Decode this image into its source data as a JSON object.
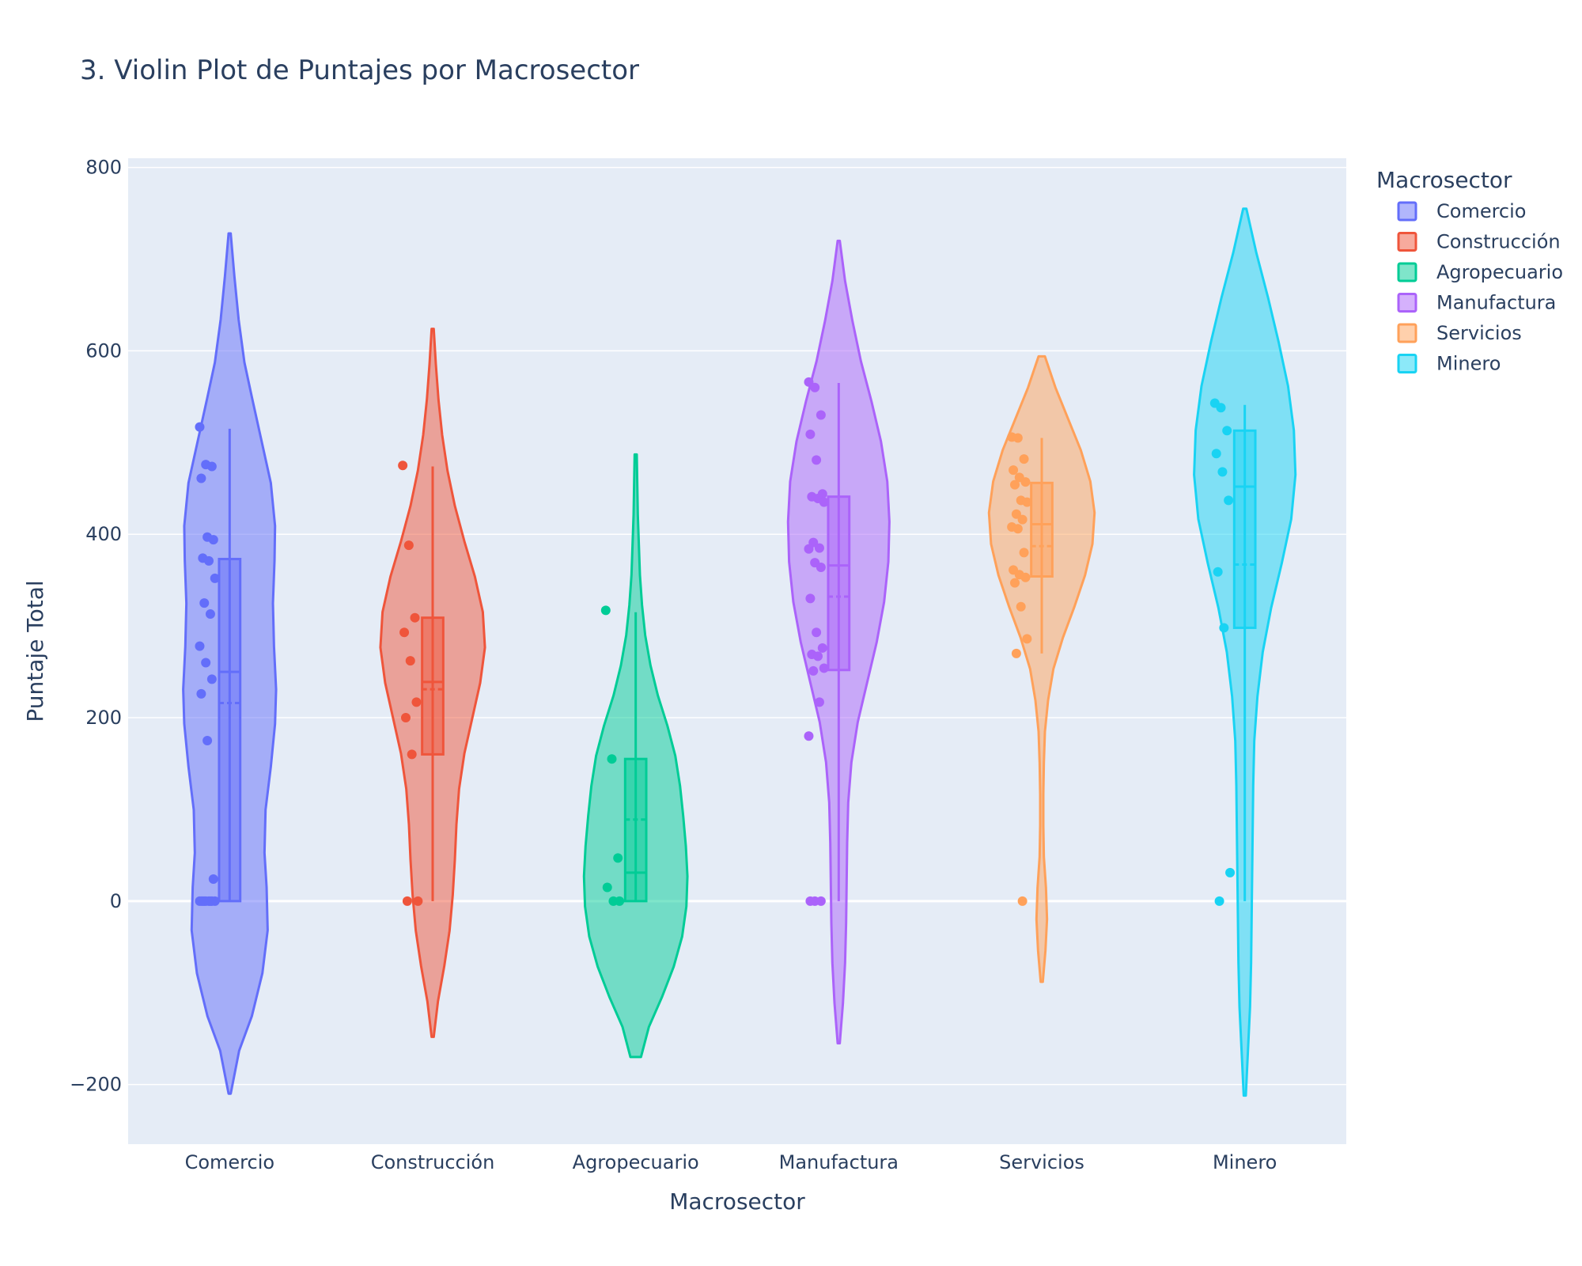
{
  "chart_data": {
    "type": "violin",
    "title": "3. Violin Plot de Puntajes por Macrosector",
    "xlabel": "Macrosector",
    "ylabel": "Puntaje Total",
    "ylim": [
      -265,
      810
    ],
    "yticks": [
      -200,
      0,
      200,
      400,
      600,
      800
    ],
    "grid": true,
    "background": "#E5ECF6",
    "legend": {
      "title": "Macrosector",
      "placement": "top-right"
    },
    "categories": [
      "Comercio",
      "Construcción",
      "Agropecuario",
      "Manufactura",
      "Servicios",
      "Minero"
    ],
    "series": [
      {
        "name": "Comercio",
        "color": "#636EFA",
        "kde_range": [
          -210,
          728
        ],
        "box": {
          "min": 0,
          "q1": 0,
          "median": 250,
          "q3": 373,
          "max": 515,
          "mean": 216
        },
        "points": [
          517,
          476,
          474,
          461,
          397,
          394,
          374,
          371,
          352,
          325,
          313,
          278,
          260,
          242,
          226,
          175,
          24,
          0,
          0,
          0,
          0,
          0,
          0,
          0,
          0,
          0
        ],
        "shape": [
          [
            0.0,
            0.02
          ],
          [
            0.05,
            0.18
          ],
          [
            0.09,
            0.42
          ],
          [
            0.14,
            0.62
          ],
          [
            0.19,
            0.72
          ],
          [
            0.24,
            0.7
          ],
          [
            0.28,
            0.66
          ],
          [
            0.33,
            0.68
          ],
          [
            0.38,
            0.78
          ],
          [
            0.43,
            0.86
          ],
          [
            0.47,
            0.88
          ],
          [
            0.52,
            0.84
          ],
          [
            0.57,
            0.82
          ],
          [
            0.62,
            0.85
          ],
          [
            0.66,
            0.86
          ],
          [
            0.71,
            0.78
          ],
          [
            0.76,
            0.6
          ],
          [
            0.81,
            0.42
          ],
          [
            0.85,
            0.28
          ],
          [
            0.9,
            0.17
          ],
          [
            0.95,
            0.09
          ],
          [
            1.0,
            0.02
          ]
        ]
      },
      {
        "name": "Construcción",
        "color": "#EF553B",
        "kde_range": [
          -148,
          624
        ],
        "box": {
          "min": 0,
          "q1": 160,
          "median": 239,
          "q3": 309,
          "max": 474,
          "mean": 231
        },
        "points": [
          475,
          388,
          309,
          293,
          262,
          217,
          200,
          160,
          0,
          0
        ],
        "shape": [
          [
            0.0,
            0.02
          ],
          [
            0.05,
            0.1
          ],
          [
            0.1,
            0.22
          ],
          [
            0.15,
            0.32
          ],
          [
            0.2,
            0.38
          ],
          [
            0.25,
            0.42
          ],
          [
            0.3,
            0.45
          ],
          [
            0.35,
            0.5
          ],
          [
            0.4,
            0.6
          ],
          [
            0.45,
            0.75
          ],
          [
            0.5,
            0.9
          ],
          [
            0.55,
            0.99
          ],
          [
            0.6,
            0.95
          ],
          [
            0.65,
            0.8
          ],
          [
            0.7,
            0.6
          ],
          [
            0.75,
            0.42
          ],
          [
            0.8,
            0.28
          ],
          [
            0.85,
            0.18
          ],
          [
            0.9,
            0.11
          ],
          [
            0.95,
            0.06
          ],
          [
            1.0,
            0.02
          ]
        ]
      },
      {
        "name": "Agropecuario",
        "color": "#00CC96",
        "kde_range": [
          -170,
          487
        ],
        "box": {
          "min": 0,
          "q1": 0,
          "median": 31,
          "q3": 155,
          "max": 315,
          "mean": 89
        },
        "points": [
          317,
          155,
          47,
          15,
          0,
          0
        ],
        "shape": [
          [
            0.0,
            0.1
          ],
          [
            0.05,
            0.25
          ],
          [
            0.1,
            0.5
          ],
          [
            0.15,
            0.72
          ],
          [
            0.2,
            0.88
          ],
          [
            0.25,
            0.96
          ],
          [
            0.3,
            0.98
          ],
          [
            0.35,
            0.95
          ],
          [
            0.4,
            0.9
          ],
          [
            0.45,
            0.84
          ],
          [
            0.5,
            0.75
          ],
          [
            0.55,
            0.6
          ],
          [
            0.6,
            0.42
          ],
          [
            0.65,
            0.28
          ],
          [
            0.7,
            0.18
          ],
          [
            0.75,
            0.12
          ],
          [
            0.8,
            0.08
          ],
          [
            0.85,
            0.06
          ],
          [
            0.9,
            0.04
          ],
          [
            0.95,
            0.03
          ],
          [
            1.0,
            0.02
          ]
        ]
      },
      {
        "name": "Manufactura",
        "color": "#AB63FA",
        "kde_range": [
          -155,
          720
        ],
        "box": {
          "min": 0,
          "q1": 252,
          "median": 366,
          "q3": 441,
          "max": 565,
          "mean": 332
        },
        "points": [
          566,
          560,
          530,
          509,
          481,
          444,
          441,
          439,
          435,
          391,
          385,
          384,
          369,
          364,
          330,
          293,
          276,
          269,
          267,
          254,
          251,
          217,
          180,
          0,
          0,
          0
        ],
        "shape": [
          [
            0.0,
            0.02
          ],
          [
            0.05,
            0.08
          ],
          [
            0.1,
            0.12
          ],
          [
            0.15,
            0.14
          ],
          [
            0.2,
            0.15
          ],
          [
            0.25,
            0.16
          ],
          [
            0.3,
            0.18
          ],
          [
            0.35,
            0.24
          ],
          [
            0.4,
            0.36
          ],
          [
            0.45,
            0.54
          ],
          [
            0.5,
            0.72
          ],
          [
            0.55,
            0.86
          ],
          [
            0.6,
            0.94
          ],
          [
            0.65,
            0.96
          ],
          [
            0.7,
            0.92
          ],
          [
            0.75,
            0.8
          ],
          [
            0.8,
            0.62
          ],
          [
            0.85,
            0.42
          ],
          [
            0.9,
            0.26
          ],
          [
            0.95,
            0.12
          ],
          [
            1.0,
            0.02
          ]
        ]
      },
      {
        "name": "Servicios",
        "color": "#FFA15A",
        "kde_range": [
          -88,
          594
        ],
        "box": {
          "min": 270,
          "q1": 354,
          "median": 411,
          "q3": 456,
          "max": 505,
          "mean": 387
        },
        "points": [
          506,
          505,
          482,
          470,
          462,
          457,
          454,
          437,
          435,
          422,
          416,
          408,
          406,
          380,
          361,
          356,
          353,
          347,
          321,
          286,
          270,
          0
        ],
        "shape": [
          [
            0.0,
            0.02
          ],
          [
            0.05,
            0.07
          ],
          [
            0.1,
            0.1
          ],
          [
            0.15,
            0.08
          ],
          [
            0.2,
            0.04
          ],
          [
            0.25,
            0.03
          ],
          [
            0.3,
            0.03
          ],
          [
            0.35,
            0.04
          ],
          [
            0.4,
            0.06
          ],
          [
            0.45,
            0.12
          ],
          [
            0.5,
            0.22
          ],
          [
            0.55,
            0.4
          ],
          [
            0.6,
            0.62
          ],
          [
            0.65,
            0.82
          ],
          [
            0.7,
            0.96
          ],
          [
            0.75,
            1.0
          ],
          [
            0.8,
            0.92
          ],
          [
            0.85,
            0.74
          ],
          [
            0.9,
            0.5
          ],
          [
            0.95,
            0.26
          ],
          [
            1.0,
            0.06
          ]
        ]
      },
      {
        "name": "Minero",
        "color": "#19D3F3",
        "kde_range": [
          -212,
          755
        ],
        "box": {
          "min": 0,
          "q1": 298,
          "median": 452,
          "q3": 513,
          "max": 541,
          "mean": 367
        },
        "points": [
          543,
          538,
          513,
          488,
          468,
          437,
          359,
          298,
          31,
          0
        ],
        "shape": [
          [
            0.0,
            0.02
          ],
          [
            0.05,
            0.06
          ],
          [
            0.1,
            0.1
          ],
          [
            0.15,
            0.12
          ],
          [
            0.2,
            0.13
          ],
          [
            0.25,
            0.14
          ],
          [
            0.3,
            0.15
          ],
          [
            0.35,
            0.16
          ],
          [
            0.4,
            0.18
          ],
          [
            0.45,
            0.24
          ],
          [
            0.5,
            0.34
          ],
          [
            0.55,
            0.5
          ],
          [
            0.6,
            0.7
          ],
          [
            0.65,
            0.88
          ],
          [
            0.7,
            0.96
          ],
          [
            0.75,
            0.93
          ],
          [
            0.8,
            0.82
          ],
          [
            0.85,
            0.64
          ],
          [
            0.9,
            0.44
          ],
          [
            0.95,
            0.22
          ],
          [
            1.0,
            0.03
          ]
        ]
      }
    ]
  }
}
